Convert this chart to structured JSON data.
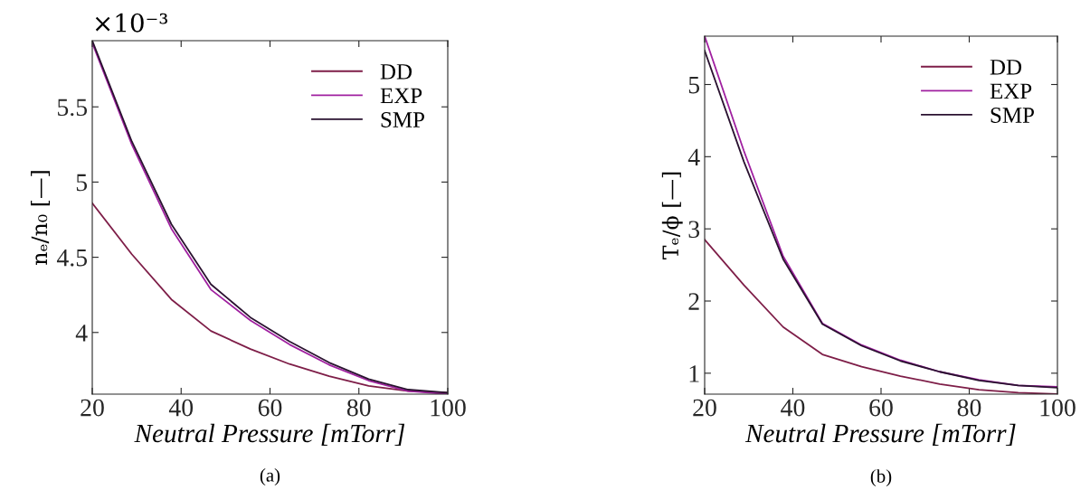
{
  "chart_data": [
    {
      "type": "line",
      "x": [
        20,
        28.9,
        37.8,
        46.7,
        55.6,
        64.4,
        73.3,
        82.2,
        91.1,
        100
      ],
      "xlabel": "Neutral Pressure [mTorr]",
      "ylabel": "nₑ/n₀ [—]",
      "annotations": [
        "×10⁻³",
        "(a)"
      ],
      "xlim": [
        20,
        100
      ],
      "xticks": [
        20,
        40,
        60,
        80,
        100
      ],
      "ylim": [
        3.59,
        5.94
      ],
      "yticks": [
        4,
        4.5,
        5,
        5.5
      ],
      "legend": "top right",
      "grid": false,
      "series": [
        {
          "name": "DD",
          "color": "#7e1e48",
          "values": [
            4.86,
            4.52,
            4.22,
            4.01,
            3.89,
            3.79,
            3.71,
            3.645,
            3.61,
            3.6
          ]
        },
        {
          "name": "EXP",
          "color": "#a020a0",
          "values": [
            5.925,
            5.25,
            4.69,
            4.285,
            4.08,
            3.92,
            3.785,
            3.68,
            3.61,
            3.59
          ]
        },
        {
          "name": "SMP",
          "color": "#2a1230",
          "values": [
            5.94,
            5.27,
            4.72,
            4.32,
            4.1,
            3.94,
            3.8,
            3.69,
            3.62,
            3.6
          ]
        }
      ]
    },
    {
      "type": "line",
      "x": [
        20,
        28.9,
        37.8,
        46.7,
        55.6,
        64.4,
        73.3,
        82.2,
        91.1,
        100
      ],
      "xlabel": "Neutral Pressure [mTorr]",
      "ylabel": "Tₑ/ϕ [—]",
      "annotations": [
        "(b)"
      ],
      "xlim": [
        20,
        100
      ],
      "xticks": [
        20,
        40,
        60,
        80,
        100
      ],
      "ylim": [
        0.71,
        5.67
      ],
      "yticks": [
        1,
        2,
        3,
        4,
        5
      ],
      "legend": "top right",
      "grid": false,
      "series": [
        {
          "name": "DD",
          "color": "#7e1e48",
          "values": [
            2.85,
            2.22,
            1.64,
            1.26,
            1.09,
            0.96,
            0.85,
            0.77,
            0.73,
            0.71
          ]
        },
        {
          "name": "EXP",
          "color": "#a020a0",
          "values": [
            5.67,
            4.08,
            2.62,
            1.69,
            1.39,
            1.18,
            1.02,
            0.91,
            0.83,
            0.81
          ]
        },
        {
          "name": "SMP",
          "color": "#2a1230",
          "values": [
            5.47,
            3.93,
            2.58,
            1.68,
            1.38,
            1.17,
            1.02,
            0.9,
            0.83,
            0.8
          ]
        }
      ]
    }
  ]
}
